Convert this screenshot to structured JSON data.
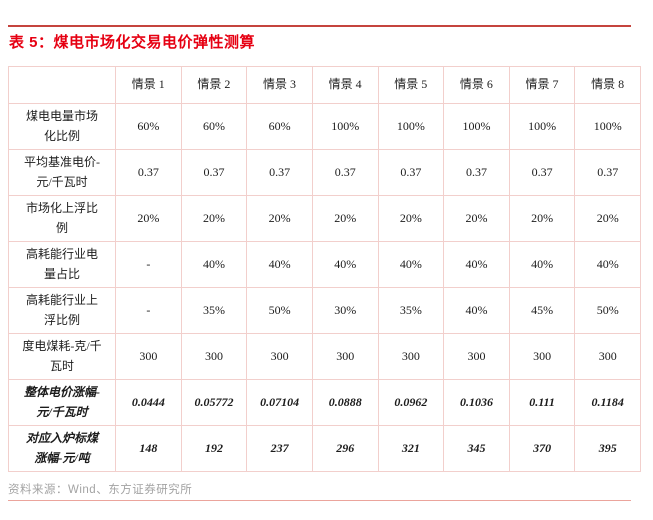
{
  "page": {
    "source": "资料来源：Wind、东方证券研究所"
  },
  "colors": {
    "title_red": "#e60012",
    "top_rule": "#c5443d",
    "bottom_rule": "#eba49c",
    "table_border": "#f2cfcc",
    "text": "#1c1c1c",
    "source_gray": "#a3a3a3"
  },
  "chart_data": {
    "type": "table",
    "title": "表 5：煤电市场化交易电价弹性测算",
    "columns": [
      "",
      "情景 1",
      "情景 2",
      "情景 3",
      "情景 4",
      "情景 5",
      "情景 6",
      "情景 7",
      "情景 8"
    ],
    "rows": [
      {
        "label": "煤电电量市场化比例",
        "values": [
          "60%",
          "60%",
          "60%",
          "100%",
          "100%",
          "100%",
          "100%",
          "100%"
        ],
        "emphasis": false
      },
      {
        "label": "平均基准电价-元/千瓦时",
        "values": [
          "0.37",
          "0.37",
          "0.37",
          "0.37",
          "0.37",
          "0.37",
          "0.37",
          "0.37"
        ],
        "emphasis": false
      },
      {
        "label": "市场化上浮比例",
        "values": [
          "20%",
          "20%",
          "20%",
          "20%",
          "20%",
          "20%",
          "20%",
          "20%"
        ],
        "emphasis": false
      },
      {
        "label": "高耗能行业电量占比",
        "values": [
          "-",
          "40%",
          "40%",
          "40%",
          "40%",
          "40%",
          "40%",
          "40%"
        ],
        "emphasis": false
      },
      {
        "label": "高耗能行业上浮比例",
        "values": [
          "-",
          "35%",
          "50%",
          "30%",
          "35%",
          "40%",
          "45%",
          "50%"
        ],
        "emphasis": false
      },
      {
        "label": "度电煤耗-克/千瓦时",
        "values": [
          "300",
          "300",
          "300",
          "300",
          "300",
          "300",
          "300",
          "300"
        ],
        "emphasis": false
      },
      {
        "label": "整体电价涨幅-元/千瓦时",
        "values": [
          "0.0444",
          "0.05772",
          "0.07104",
          "0.0888",
          "0.0962",
          "0.1036",
          "0.111",
          "0.1184"
        ],
        "emphasis": true
      },
      {
        "label": "对应入炉标煤涨幅-元/吨",
        "values": [
          "148",
          "192",
          "237",
          "296",
          "321",
          "345",
          "370",
          "395"
        ],
        "emphasis": true
      }
    ]
  }
}
